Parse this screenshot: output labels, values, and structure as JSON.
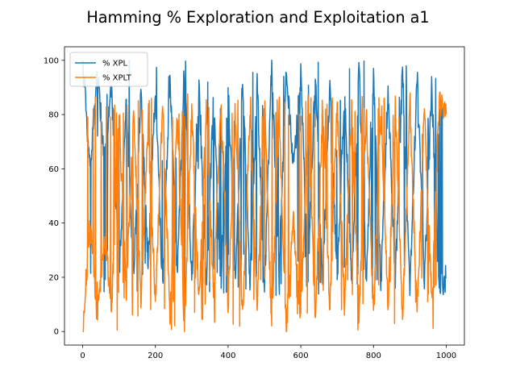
{
  "chart_data": {
    "type": "line",
    "title": "Hamming % Exploration and Exploitation a1",
    "xlabel": "",
    "ylabel": "",
    "xlim": [
      -50,
      1050
    ],
    "ylim": [
      -5,
      105
    ],
    "x_ticks": [
      0,
      200,
      400,
      600,
      800,
      1000
    ],
    "y_ticks": [
      0,
      20,
      40,
      60,
      80,
      100
    ],
    "grid": false,
    "legend_position": "upper-left",
    "series": [
      {
        "name": "% XPL",
        "color": "#1f77b4",
        "pattern": "oscillating between ~15-25 and ~60-100 over steps 0-1000",
        "keypoints_x": [
          0,
          20,
          40,
          60,
          80,
          100,
          120,
          140,
          160,
          180,
          200,
          220,
          240,
          260,
          280,
          300,
          320,
          340,
          360,
          380,
          400,
          420,
          440,
          460,
          480,
          500,
          520,
          540,
          560,
          580,
          600,
          620,
          640,
          660,
          680,
          700,
          720,
          740,
          760,
          780,
          800,
          820,
          840,
          860,
          880,
          900,
          920,
          940,
          960,
          980,
          1000
        ],
        "keypoints_y": [
          100,
          60,
          95,
          65,
          90,
          20,
          85,
          20,
          88,
          25,
          90,
          15,
          95,
          20,
          100,
          18,
          90,
          17,
          85,
          16,
          90,
          20,
          95,
          18,
          92,
          15,
          100,
          20,
          98,
          60,
          95,
          20,
          97,
          18,
          92,
          16,
          90,
          17,
          96,
          18,
          95,
          20,
          90,
          18,
          97,
          16,
          95,
          18,
          90,
          16,
          20
        ]
      },
      {
        "name": "% XPLT",
        "color": "#ff7f0e",
        "pattern": "complementary to % XPL, oscillating between ~0-20 and ~80-87",
        "keypoints_x": [
          0,
          20,
          40,
          60,
          80,
          100,
          120,
          140,
          160,
          180,
          200,
          220,
          240,
          260,
          280,
          300,
          320,
          340,
          360,
          380,
          400,
          420,
          440,
          460,
          480,
          500,
          520,
          540,
          560,
          580,
          600,
          620,
          640,
          660,
          680,
          700,
          720,
          740,
          760,
          780,
          800,
          820,
          840,
          860,
          880,
          900,
          920,
          940,
          960,
          980,
          1000
        ],
        "keypoints_y": [
          0,
          40,
          5,
          35,
          10,
          80,
          15,
          80,
          12,
          75,
          10,
          85,
          5,
          80,
          0,
          82,
          10,
          83,
          15,
          84,
          10,
          80,
          5,
          82,
          8,
          85,
          0,
          80,
          2,
          40,
          5,
          80,
          3,
          82,
          8,
          84,
          10,
          83,
          4,
          82,
          5,
          80,
          10,
          82,
          3,
          84,
          5,
          82,
          10,
          84,
          80
        ]
      }
    ]
  }
}
